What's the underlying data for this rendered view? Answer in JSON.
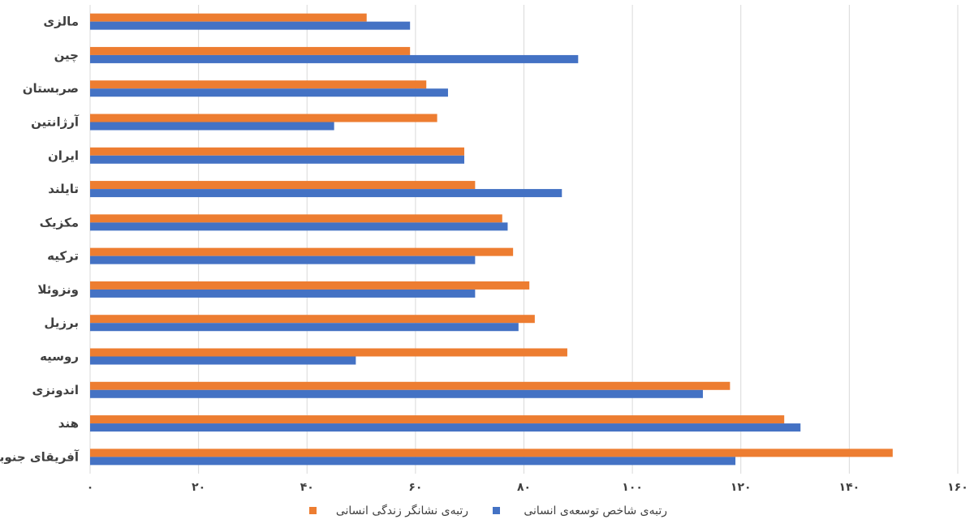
{
  "chart_data": {
    "type": "bar",
    "orientation": "horizontal",
    "title": "",
    "xlabel": "",
    "ylabel": "",
    "xlim": [
      0,
      160
    ],
    "x_ticks": [
      0,
      20,
      40,
      60,
      80,
      100,
      120,
      140,
      160
    ],
    "x_tick_labels": [
      "۰",
      "۲۰",
      "۴۰",
      "۶۰",
      "۸۰",
      "۱۰۰",
      "۱۲۰",
      "۱۴۰",
      "۱۶۰"
    ],
    "grid": true,
    "legend_position": "bottom",
    "categories": [
      "مالزی",
      "چین",
      "صربستان",
      "آرژانتین",
      "ایران",
      "تایلند",
      "مکزیک",
      "ترکیه",
      "ونزوئلا",
      "برزیل",
      "روسیه",
      "اندونزی",
      "هند",
      "آفریقای جنوبی"
    ],
    "series": [
      {
        "name": "رتبه‌ی نشانگر زندگی انسانی",
        "color": "#ED7D31",
        "values": [
          51,
          59,
          62,
          64,
          69,
          71,
          76,
          78,
          81,
          82,
          88,
          118,
          128,
          148
        ]
      },
      {
        "name": "رتبه‌ی شاخص توسعه‌ی انسانی",
        "color": "#4472C4",
        "values": [
          59,
          90,
          66,
          45,
          69,
          87,
          77,
          71,
          71,
          79,
          49,
          113,
          131,
          119
        ]
      }
    ]
  }
}
